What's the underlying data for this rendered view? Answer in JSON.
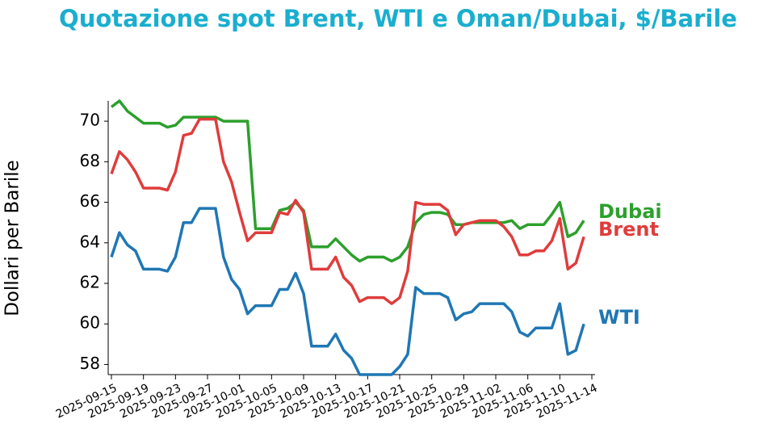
{
  "chart_data": {
    "type": "line",
    "title": "Quotazione spot Brent, WTI e Oman/Dubai, $/Barile",
    "y_label": "Dollari per Barile",
    "x": [
      "2025-09-15",
      "2025-09-16",
      "2025-09-17",
      "2025-09-18",
      "2025-09-19",
      "2025-09-20",
      "2025-09-21",
      "2025-09-22",
      "2025-09-23",
      "2025-09-24",
      "2025-09-25",
      "2025-09-26",
      "2025-09-27",
      "2025-09-28",
      "2025-09-29",
      "2025-09-30",
      "2025-10-01",
      "2025-10-02",
      "2025-10-03",
      "2025-10-04",
      "2025-10-05",
      "2025-10-06",
      "2025-10-07",
      "2025-10-08",
      "2025-10-09",
      "2025-10-10",
      "2025-10-11",
      "2025-10-12",
      "2025-10-13",
      "2025-10-14",
      "2025-10-15",
      "2025-10-16",
      "2025-10-17",
      "2025-10-18",
      "2025-10-19",
      "2025-10-20",
      "2025-10-21",
      "2025-10-22",
      "2025-10-23",
      "2025-10-24",
      "2025-10-25",
      "2025-10-26",
      "2025-10-27",
      "2025-10-28",
      "2025-10-29",
      "2025-10-30",
      "2025-10-31",
      "2025-11-01",
      "2025-11-02",
      "2025-11-03",
      "2025-11-04",
      "2025-11-05",
      "2025-11-06",
      "2025-11-07",
      "2025-11-08",
      "2025-11-09",
      "2025-11-10",
      "2025-11-11",
      "2025-11-12",
      "2025-11-13"
    ],
    "series": [
      {
        "name": "Dubai",
        "color": "#2ca02c",
        "values": [
          70.7,
          71,
          70.5,
          70.2,
          69.9,
          69.9,
          69.9,
          69.7,
          69.8,
          70.2,
          70.2,
          70.2,
          70.2,
          70.2,
          70,
          70,
          70,
          70,
          64.7,
          64.7,
          64.7,
          65.6,
          65.7,
          66,
          65.6,
          63.8,
          63.8,
          63.8,
          64.2,
          63.8,
          63.4,
          63.1,
          63.3,
          63.3,
          63.3,
          63.1,
          63.3,
          63.8,
          65,
          65.4,
          65.5,
          65.5,
          65.4,
          64.9,
          64.9,
          65,
          65,
          65,
          65,
          65,
          65.1,
          64.7,
          64.9,
          64.9,
          64.9,
          65.4,
          66,
          64.3,
          64.5,
          65.1
        ]
      },
      {
        "name": "Brent",
        "color": "#e03c3c",
        "values": [
          67.4,
          68.5,
          68.1,
          67.5,
          66.7,
          66.7,
          66.7,
          66.6,
          67.5,
          69.3,
          69.4,
          70.1,
          70.1,
          70.1,
          68,
          67,
          65.5,
          64.1,
          64.5,
          64.5,
          64.5,
          65.5,
          65.4,
          66.1,
          65.5,
          62.7,
          62.7,
          62.7,
          63.3,
          62.3,
          61.9,
          61.1,
          61.3,
          61.3,
          61.3,
          61,
          61.3,
          62.6,
          66,
          65.9,
          65.9,
          65.9,
          65.6,
          64.4,
          64.9,
          65,
          65.1,
          65.1,
          65.1,
          64.8,
          64.3,
          63.4,
          63.4,
          63.6,
          63.6,
          64.1,
          65.2,
          62.7,
          63,
          64.3
        ]
      },
      {
        "name": "WTI",
        "color": "#1f77b4",
        "values": [
          63.3,
          64.5,
          63.9,
          63.6,
          62.7,
          62.7,
          62.7,
          62.6,
          63.3,
          65,
          65,
          65.7,
          65.7,
          65.7,
          63.3,
          62.2,
          61.7,
          60.5,
          60.9,
          60.9,
          60.9,
          61.7,
          61.7,
          62.5,
          61.5,
          58.9,
          58.9,
          58.9,
          59.5,
          58.7,
          58.3,
          57.5,
          57.5,
          57.5,
          57.5,
          57.5,
          57.9,
          58.5,
          61.8,
          61.5,
          61.5,
          61.5,
          61.3,
          60.2,
          60.5,
          60.6,
          61,
          61,
          61,
          61,
          60.6,
          59.6,
          59.4,
          59.8,
          59.8,
          59.8,
          61,
          58.5,
          58.7,
          60
        ]
      }
    ],
    "xlim": [
      "2025-09-15",
      "2025-11-14"
    ],
    "xticks": [
      "2025-09-15",
      "2025-09-19",
      "2025-09-23",
      "2025-09-27",
      "2025-10-01",
      "2025-10-05",
      "2025-10-09",
      "2025-10-13",
      "2025-10-17",
      "2025-10-21",
      "2025-10-25",
      "2025-10-29",
      "2025-11-02",
      "2025-11-06",
      "2025-11-10",
      "2025-11-14"
    ],
    "ylim": [
      57.5,
      71
    ],
    "yticks": [
      58,
      60,
      62,
      64,
      66,
      68,
      70
    ]
  }
}
